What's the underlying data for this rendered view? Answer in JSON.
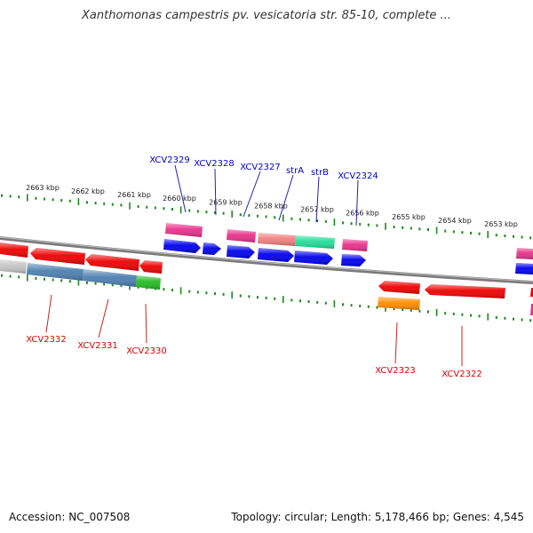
{
  "title": "Xanthomonas campestris pv. vesicatoria str. 85-10, complete ...",
  "footer": {
    "accession": "Accession: NC_007508",
    "summary": "Topology: circular; Length: 5,178,466 bp; Genes: 4,545"
  },
  "colors": {
    "backbone": "#7a7a7a",
    "tick": "#1e8a1e",
    "label_top": "#0000cc",
    "label_bottom": "#dd0000"
  },
  "scale_labels": [
    "2663 kbp",
    "2662 kbp",
    "2661 kbp",
    "2660 kbp",
    "2659 kbp",
    "2658 kbp",
    "2657 kbp",
    "2656 kbp",
    "2655 kbp",
    "2654 kbp",
    "2653 kbp"
  ],
  "top_gene_labels": [
    "XCV2329",
    "XCV2328",
    "XCV2327",
    "strA",
    "strB",
    "XCV2324"
  ],
  "bottom_gene_labels": [
    "XCV2332",
    "XCV2331",
    "XCV2330",
    "XCV2323",
    "XCV2322"
  ]
}
